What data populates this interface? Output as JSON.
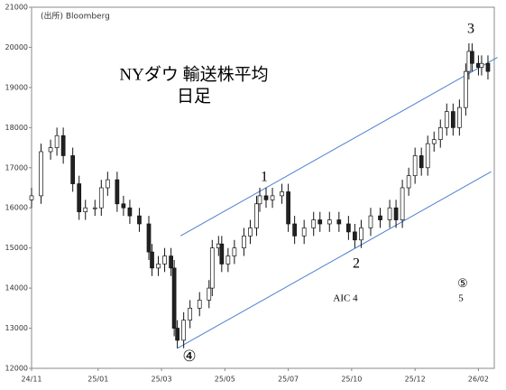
{
  "chart_data": {
    "type": "candlestick",
    "title": "NYダウ 輸送株平均",
    "subtitle": "日足",
    "source": "(出所) Bloomberg",
    "x": [
      0,
      3,
      6,
      8,
      10,
      13,
      15,
      17,
      20,
      22,
      24,
      27,
      29,
      31,
      34,
      37,
      38,
      40,
      42,
      44,
      45,
      46,
      48,
      50,
      53,
      56,
      57,
      59,
      60,
      62,
      64,
      67,
      69,
      71,
      72,
      74,
      76,
      79,
      81,
      83,
      86,
      89,
      91,
      94,
      97,
      100,
      102,
      104,
      107,
      110,
      113,
      115,
      117,
      119,
      121,
      123,
      125,
      127,
      129,
      131,
      133,
      135,
      137,
      138,
      139,
      141,
      142,
      144
    ],
    "open": [
      16200,
      16300,
      17400,
      17500,
      17800,
      17300,
      16600,
      15900,
      16000,
      16000,
      16500,
      16700,
      16100,
      16000,
      15800,
      15600,
      14900,
      14500,
      14600,
      14800,
      14500,
      13000,
      12700,
      13200,
      13500,
      13700,
      14000,
      15000,
      15100,
      14600,
      14800,
      15000,
      15300,
      15500,
      16100,
      16300,
      16200,
      16300,
      16400,
      15600,
      15300,
      15500,
      15700,
      15600,
      15700,
      15600,
      15400,
      15200,
      15500,
      15800,
      15700,
      16000,
      15700,
      16500,
      16800,
      17300,
      17000,
      17600,
      17700,
      18000,
      18400,
      18000,
      18500,
      19400,
      19900,
      19600,
      19500,
      19600
    ],
    "high": [
      16500,
      17600,
      17700,
      18000,
      18000,
      17500,
      16800,
      16200,
      16200,
      16700,
      16900,
      16900,
      16300,
      16200,
      16000,
      15800,
      15100,
      14800,
      15000,
      15000,
      14700,
      13200,
      13400,
      13700,
      13900,
      14200,
      15200,
      15300,
      15300,
      15000,
      15200,
      15500,
      15700,
      16300,
      16500,
      16500,
      16500,
      16600,
      16600,
      15800,
      15700,
      15900,
      15900,
      15900,
      15900,
      15800,
      15600,
      15700,
      16000,
      16000,
      16200,
      16200,
      16700,
      17000,
      17500,
      17500,
      17800,
      17900,
      18200,
      18600,
      18600,
      18700,
      19600,
      20100,
      20100,
      19800,
      19800,
      19800
    ],
    "low": [
      16000,
      16100,
      17200,
      17300,
      17100,
      16400,
      15700,
      15700,
      15800,
      15800,
      16300,
      15900,
      15800,
      15600,
      15400,
      14700,
      14300,
      14300,
      14400,
      14300,
      12800,
      12500,
      12500,
      13000,
      13300,
      13500,
      13800,
      14800,
      14400,
      14400,
      14600,
      14800,
      15100,
      15300,
      15900,
      16000,
      16000,
      16100,
      15400,
      15100,
      15100,
      15300,
      15400,
      15400,
      15400,
      15200,
      15000,
      15000,
      15300,
      15500,
      15500,
      15500,
      15500,
      16300,
      16600,
      16800,
      16800,
      17400,
      17500,
      17800,
      17800,
      17800,
      18300,
      19200,
      19400,
      19300,
      19300,
      19200
    ],
    "close": [
      16300,
      17400,
      17500,
      17800,
      17300,
      16600,
      15900,
      16000,
      16000,
      16500,
      16700,
      16100,
      16000,
      15800,
      15600,
      14900,
      14500,
      14600,
      14800,
      14500,
      13000,
      12700,
      13200,
      13500,
      13700,
      14000,
      15000,
      15100,
      14600,
      14800,
      15000,
      15300,
      15500,
      16100,
      16300,
      16200,
      16300,
      16400,
      15600,
      15300,
      15500,
      15700,
      15600,
      15700,
      15600,
      15400,
      15200,
      15500,
      15800,
      15700,
      16000,
      15700,
      16500,
      16800,
      17300,
      17000,
      17600,
      17700,
      18000,
      18400,
      18000,
      18500,
      19400,
      19900,
      19600,
      19500,
      19600,
      19400
    ],
    "xlim": [
      0,
      146
    ],
    "xticks": [
      {
        "value": 0,
        "label": "24/11"
      },
      {
        "value": 21,
        "label": "25/01"
      },
      {
        "value": 41,
        "label": "25/03"
      },
      {
        "value": 61,
        "label": "25/05"
      },
      {
        "value": 81,
        "label": "25/07"
      },
      {
        "value": 101,
        "label": "25/10"
      },
      {
        "value": 121,
        "label": "25/12"
      },
      {
        "value": 141,
        "label": "26/02"
      }
    ],
    "ylim": [
      12000,
      21000
    ],
    "yticks": [
      12000,
      13000,
      14000,
      15000,
      16000,
      17000,
      18000,
      19000,
      20000,
      21000
    ],
    "trend_lines": [
      {
        "x": [
          47,
          147
        ],
        "y": [
          15300,
          19750
        ],
        "color": "#4a7fd0"
      },
      {
        "x": [
          46,
          145
        ],
        "y": [
          12500,
          16900
        ],
        "color": "#4a7fd0"
      }
    ],
    "annotations": [
      "1",
      "2",
      "3",
      "④",
      "⑤",
      "AIC  4",
      "5"
    ]
  }
}
